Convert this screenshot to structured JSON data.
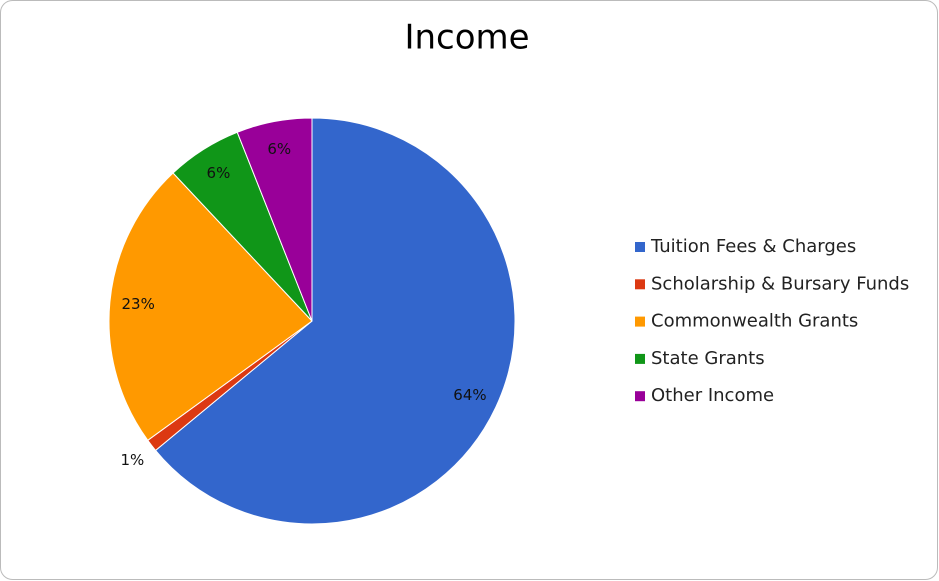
{
  "chart_data": {
    "type": "pie",
    "title": "Income",
    "categories": [
      "Tuition Fees & Charges",
      "Scholarship & Bursary Funds",
      "Commonwealth Grants",
      "State Grants",
      "Other Income"
    ],
    "values": [
      64,
      1,
      23,
      6,
      6
    ],
    "value_labels": [
      "64%",
      "1%",
      "23%",
      "6%",
      "6%"
    ],
    "colors": [
      "#3366cc",
      "#dc3912",
      "#ff9900",
      "#109618",
      "#990099"
    ],
    "legend": "right"
  }
}
